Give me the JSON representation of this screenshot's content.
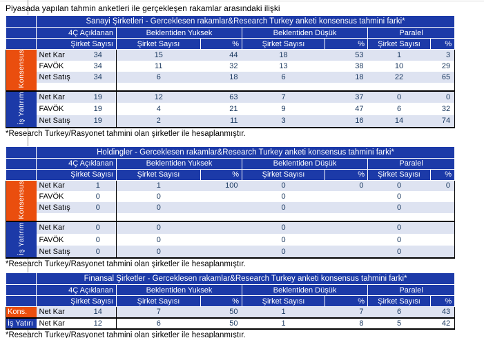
{
  "page_title": "Piyasada yapılan tahmin anketleri ile gerçekleşen rakamlar arasındaki ilişki",
  "footnote": "*Research Turkey/Rasyonet  tahmini olan şirketler ile hesaplanmıştır.",
  "colors": {
    "header_blue": "#1c3aa8",
    "accent_orange": "#ea4e0e",
    "row_shade": "#dee3f1",
    "value_text": "#17365d"
  },
  "column_headers": {
    "first_group": "4Ç Açıklanan",
    "first_sub": "Şirket Sayısı",
    "groups": [
      "Beklentiden Yuksek",
      "Beklentiden Düşük",
      "Paralel"
    ],
    "sub_count": "Şirket Sayısı",
    "sub_pct": "%"
  },
  "tables": [
    {
      "id": "sanayi",
      "title": "Sanayi Şirketleri - Gerceklesen rakamlar&Research Turkey anketi konsensus tahmini farki*",
      "gap_row": true,
      "label_style": "vertical",
      "sections": [
        {
          "label": "Konsensus",
          "color": "orange",
          "rows": [
            {
              "metric": "Net Kar",
              "values": [
                "34",
                "15",
                "44",
                "18",
                "53",
                "1",
                "3"
              ]
            },
            {
              "metric": "FAVÖK",
              "values": [
                "34",
                "11",
                "32",
                "13",
                "38",
                "10",
                "29"
              ]
            },
            {
              "metric": "Net Satış",
              "values": [
                "34",
                "6",
                "18",
                "6",
                "18",
                "22",
                "65"
              ]
            }
          ]
        },
        {
          "label": "İş Yatırım",
          "color": "blue",
          "rows": [
            {
              "metric": "Net Kar",
              "values": [
                "19",
                "12",
                "63",
                "7",
                "37",
                "0",
                "0"
              ]
            },
            {
              "metric": "FAVÖK",
              "values": [
                "19",
                "4",
                "21",
                "9",
                "47",
                "6",
                "32"
              ]
            },
            {
              "metric": "Net Satış",
              "values": [
                "19",
                "2",
                "11",
                "3",
                "16",
                "14",
                "74"
              ]
            }
          ]
        }
      ]
    },
    {
      "id": "holdingler",
      "title": "Holdingler - Gerceklesen rakamlar&Research Turkey anketi konsensus tahmini farki*",
      "gap_row": true,
      "label_style": "vertical",
      "sections": [
        {
          "label": "Konsensus",
          "color": "orange",
          "rows": [
            {
              "metric": "Net Kar",
              "values": [
                "1",
                "1",
                "100",
                "0",
                "0",
                "0",
                "0"
              ]
            },
            {
              "metric": "FAVÖK",
              "values": [
                "0",
                "0",
                "",
                "0",
                "",
                "0",
                ""
              ]
            },
            {
              "metric": "Net Satış",
              "values": [
                "0",
                "0",
                "",
                "0",
                "",
                "0",
                ""
              ]
            }
          ]
        },
        {
          "label": "İş Yatırım",
          "color": "blue",
          "rows": [
            {
              "metric": "Net Kar",
              "values": [
                "0",
                "0",
                "",
                "0",
                "",
                "0",
                ""
              ]
            },
            {
              "metric": "FAVÖK",
              "values": [
                "0",
                "0",
                "",
                "0",
                "",
                "0",
                ""
              ]
            },
            {
              "metric": "Net Satış",
              "values": [
                "0",
                "0",
                "",
                "0",
                "",
                "0",
                ""
              ]
            }
          ]
        }
      ]
    },
    {
      "id": "finansal",
      "title": "Finansal Şirketler - Gerceklesen rakamlar&Research Turkey anketi konsensus tahmini farki*",
      "gap_row": false,
      "label_style": "horizontal",
      "sections": [
        {
          "label": "Kons.",
          "color": "orange",
          "rows": [
            {
              "metric": "Net Kar",
              "values": [
                "14",
                "7",
                "50",
                "1",
                "7",
                "6",
                "43"
              ]
            }
          ]
        },
        {
          "label": "İş Yatırı",
          "color": "blue",
          "rows": [
            {
              "metric": "Net Kar",
              "values": [
                "12",
                "6",
                "50",
                "1",
                "8",
                "5",
                "42"
              ]
            }
          ]
        }
      ]
    }
  ]
}
